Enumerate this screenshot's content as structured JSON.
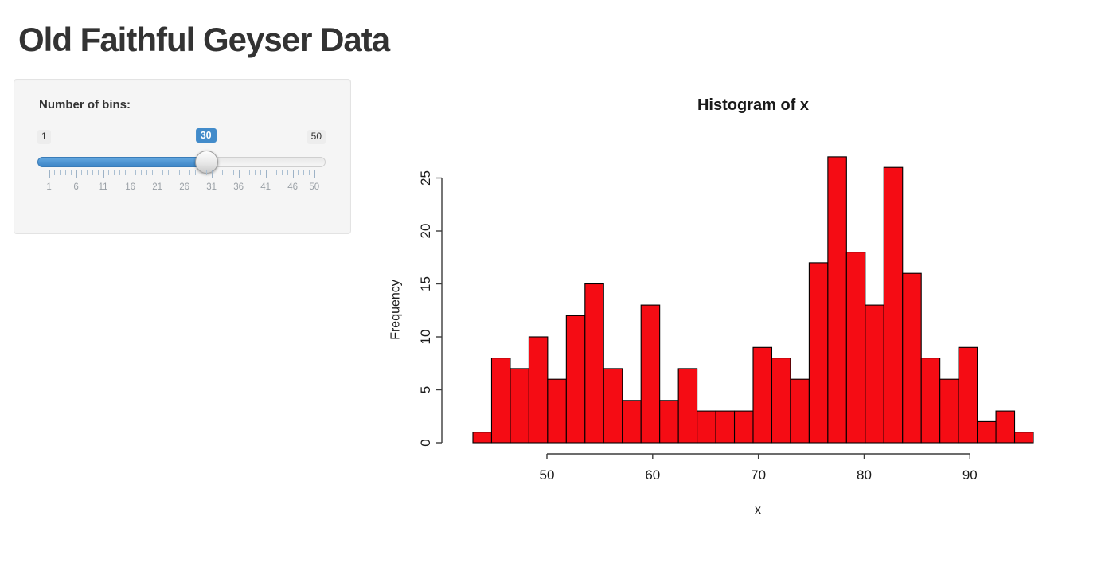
{
  "page": {
    "title": "Old Faithful Geyser Data"
  },
  "sidebar": {
    "bins_label": "Number of bins:",
    "slider": {
      "min": 1,
      "max": 50,
      "value": 30,
      "min_label": "1",
      "max_label": "50",
      "value_label": "30",
      "grid_labels": [
        1,
        6,
        11,
        16,
        21,
        26,
        31,
        36,
        41,
        46,
        50
      ],
      "accent_color": "#428bca"
    }
  },
  "chart_data": {
    "type": "bar",
    "variant": "histogram",
    "title": "Histogram of x",
    "xlabel": "x",
    "ylabel": "Frequency",
    "xlim": [
      43,
      96
    ],
    "ylim": [
      0,
      27
    ],
    "bin_count": 30,
    "counts": [
      1,
      8,
      7,
      10,
      6,
      12,
      15,
      7,
      4,
      13,
      4,
      7,
      3,
      3,
      3,
      9,
      8,
      6,
      17,
      27,
      18,
      13,
      26,
      16,
      8,
      6,
      9,
      2,
      3,
      1
    ],
    "x_ticks": [
      50,
      60,
      70,
      80,
      90
    ],
    "y_ticks": [
      0,
      5,
      10,
      15,
      20,
      25
    ],
    "grid": false,
    "legend": false,
    "bar_fill": "#f50c14",
    "bar_stroke": "#000000",
    "axis_color": "#3c3c3c",
    "text_color": "#1a1a1a"
  }
}
